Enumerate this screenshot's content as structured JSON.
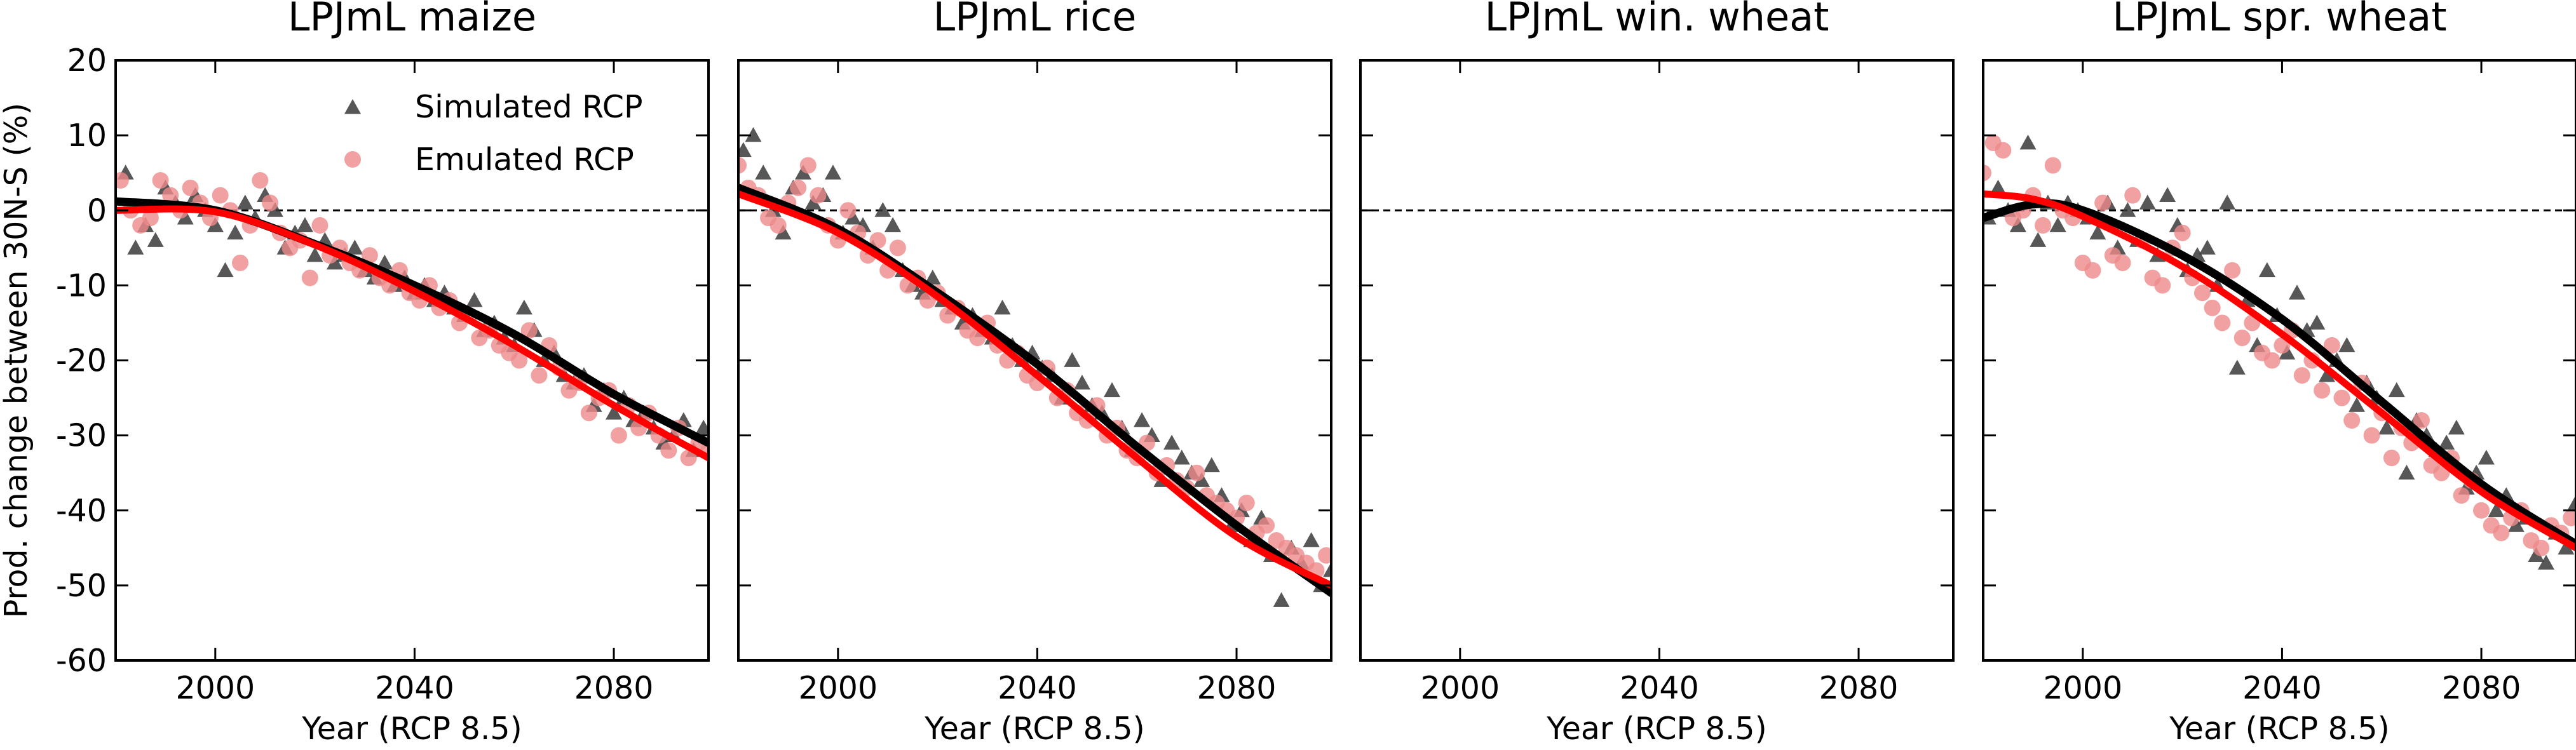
{
  "figure": {
    "ylabel": "Prod. change between 30N-S (%)",
    "y_ticks": [
      20,
      10,
      0,
      -10,
      -20,
      -30,
      -40,
      -50,
      -60
    ],
    "x_ticks": [
      2000,
      2040,
      2080
    ],
    "legend": {
      "simulated": "Simulated RCP",
      "emulated": "Emulated RCP",
      "simulated_color": "#3a3a3a",
      "emulated_color": "#ee8a8a"
    },
    "colors": {
      "simulated_fit": "#000000",
      "emulated_fit": "#ff0000",
      "zero_line": "#000000"
    }
  },
  "chart_data": [
    {
      "type": "scatter",
      "title": "LPJmL maize",
      "xlabel": "Year (RCP 8.5)",
      "ylabel": "Prod. change between 30N-S (%)",
      "xlim": [
        1980,
        2099
      ],
      "ylim": [
        -60,
        20
      ],
      "zero_line": true,
      "legend": "top-right",
      "series": [
        {
          "name": "Simulated RCP",
          "marker": "triangle",
          "x": [
            1982,
            1984,
            1986,
            1988,
            1990,
            1992,
            1994,
            1996,
            1998,
            2000,
            2002,
            2004,
            2006,
            2008,
            2010,
            2012,
            2014,
            2016,
            2018,
            2020,
            2022,
            2024,
            2026,
            2028,
            2030,
            2032,
            2034,
            2036,
            2038,
            2040,
            2042,
            2044,
            2046,
            2048,
            2050,
            2052,
            2054,
            2056,
            2058,
            2060,
            2062,
            2064,
            2066,
            2068,
            2070,
            2072,
            2074,
            2076,
            2078,
            2080,
            2082,
            2084,
            2086,
            2088,
            2090,
            2092,
            2094,
            2096,
            2098
          ],
          "y": [
            5,
            -5,
            -2,
            -4,
            3,
            1,
            -1,
            2,
            0,
            -2,
            -8,
            -3,
            1,
            -1,
            2,
            0,
            -5,
            -3,
            -2,
            -6,
            -4,
            -7,
            -6,
            -5,
            -8,
            -9,
            -7,
            -10,
            -9,
            -11,
            -10,
            -12,
            -11,
            -13,
            -14,
            -12,
            -16,
            -15,
            -17,
            -18,
            -13,
            -16,
            -20,
            -19,
            -22,
            -23,
            -22,
            -26,
            -24,
            -27,
            -25,
            -28,
            -27,
            -29,
            -31,
            -30,
            -28,
            -32,
            -29
          ]
        },
        {
          "name": "Emulated RCP",
          "marker": "circle",
          "x": [
            1981,
            1983,
            1985,
            1987,
            1989,
            1991,
            1993,
            1995,
            1997,
            1999,
            2001,
            2003,
            2005,
            2007,
            2009,
            2011,
            2013,
            2015,
            2017,
            2019,
            2021,
            2023,
            2025,
            2027,
            2029,
            2031,
            2033,
            2035,
            2037,
            2039,
            2041,
            2043,
            2045,
            2047,
            2049,
            2051,
            2053,
            2055,
            2057,
            2059,
            2061,
            2063,
            2065,
            2067,
            2069,
            2071,
            2073,
            2075,
            2077,
            2079,
            2081,
            2083,
            2085,
            2087,
            2089,
            2091,
            2093,
            2095,
            2097,
            2099
          ],
          "y": [
            4,
            0,
            -2,
            -1,
            4,
            2,
            0,
            3,
            1,
            -1,
            2,
            0,
            -7,
            -2,
            4,
            1,
            -3,
            -5,
            -4,
            -9,
            -2,
            -6,
            -5,
            -7,
            -8,
            -6,
            -9,
            -10,
            -8,
            -11,
            -12,
            -10,
            -13,
            -12,
            -15,
            -14,
            -17,
            -16,
            -18,
            -19,
            -20,
            -16,
            -22,
            -18,
            -21,
            -24,
            -23,
            -27,
            -25,
            -24,
            -30,
            -26,
            -29,
            -27,
            -30,
            -32,
            -29,
            -33,
            -31,
            -32
          ]
        }
      ],
      "fits": [
        {
          "name": "Simulated RCP",
          "x": [
            1980,
            2000,
            2020,
            2040,
            2060,
            2080,
            2099
          ],
          "y": [
            1.2,
            0.0,
            -4.5,
            -10.0,
            -16.5,
            -24.5,
            -31.0
          ]
        },
        {
          "name": "Emulated RCP",
          "x": [
            1980,
            2000,
            2020,
            2040,
            2060,
            2080,
            2099
          ],
          "y": [
            0.0,
            -0.2,
            -4.6,
            -10.8,
            -18.0,
            -26.0,
            -33.0
          ]
        }
      ]
    },
    {
      "type": "scatter",
      "title": "LPJmL rice",
      "xlabel": "Year (RCP 8.5)",
      "xlim": [
        1980,
        2099
      ],
      "ylim": [
        -60,
        20
      ],
      "zero_line": true,
      "series": [
        {
          "name": "Simulated RCP",
          "marker": "triangle",
          "x": [
            1981,
            1983,
            1985,
            1987,
            1989,
            1991,
            1993,
            1995,
            1997,
            1999,
            2001,
            2003,
            2005,
            2007,
            2009,
            2011,
            2013,
            2015,
            2017,
            2019,
            2021,
            2023,
            2025,
            2027,
            2029,
            2031,
            2033,
            2035,
            2037,
            2039,
            2041,
            2043,
            2045,
            2047,
            2049,
            2051,
            2053,
            2055,
            2057,
            2059,
            2061,
            2063,
            2065,
            2067,
            2069,
            2071,
            2073,
            2075,
            2077,
            2079,
            2081,
            2083,
            2085,
            2087,
            2089,
            2091,
            2093,
            2095,
            2097,
            2099
          ],
          "y": [
            8,
            10,
            5,
            0,
            -3,
            3,
            5,
            1,
            2,
            5,
            -3,
            -1,
            -2,
            -5,
            0,
            -2,
            -8,
            -10,
            -11,
            -9,
            -12,
            -13,
            -15,
            -14,
            -16,
            -17,
            -13,
            -18,
            -20,
            -19,
            -21,
            -22,
            -25,
            -20,
            -23,
            -26,
            -27,
            -24,
            -29,
            -32,
            -28,
            -30,
            -36,
            -31,
            -33,
            -35,
            -36,
            -34,
            -38,
            -42,
            -40,
            -44,
            -41,
            -46,
            -52,
            -45,
            -47,
            -44,
            -50,
            -48
          ]
        },
        {
          "name": "Emulated RCP",
          "marker": "circle",
          "x": [
            1980,
            1982,
            1984,
            1986,
            1988,
            1990,
            1992,
            1994,
            1996,
            1998,
            2000,
            2002,
            2004,
            2006,
            2008,
            2010,
            2012,
            2014,
            2016,
            2018,
            2020,
            2022,
            2024,
            2026,
            2028,
            2030,
            2032,
            2034,
            2036,
            2038,
            2040,
            2042,
            2044,
            2046,
            2048,
            2050,
            2052,
            2054,
            2056,
            2058,
            2060,
            2062,
            2064,
            2066,
            2068,
            2070,
            2072,
            2074,
            2076,
            2078,
            2080,
            2082,
            2084,
            2086,
            2088,
            2090,
            2092,
            2094,
            2096,
            2098
          ],
          "y": [
            6,
            3,
            2,
            -1,
            -2,
            1,
            3,
            6,
            2,
            -2,
            -4,
            0,
            -3,
            -6,
            -4,
            -8,
            -5,
            -10,
            -9,
            -12,
            -11,
            -14,
            -13,
            -16,
            -17,
            -15,
            -18,
            -20,
            -19,
            -22,
            -23,
            -21,
            -25,
            -24,
            -27,
            -28,
            -26,
            -30,
            -29,
            -32,
            -33,
            -31,
            -35,
            -34,
            -36,
            -37,
            -35,
            -38,
            -39,
            -40,
            -41,
            -39,
            -43,
            -42,
            -44,
            -45,
            -46,
            -47,
            -48,
            -46
          ]
        }
      ],
      "fits": [
        {
          "name": "Simulated RCP",
          "x": [
            1980,
            2000,
            2020,
            2040,
            2060,
            2080,
            2099
          ],
          "y": [
            3.0,
            -2.5,
            -11.0,
            -20.5,
            -31.5,
            -42.0,
            -51.0
          ]
        },
        {
          "name": "Emulated RCP",
          "x": [
            1980,
            2000,
            2020,
            2040,
            2060,
            2080,
            2099
          ],
          "y": [
            2.2,
            -3.0,
            -11.5,
            -22.0,
            -33.0,
            -43.5,
            -50.0
          ]
        }
      ]
    },
    {
      "type": "scatter",
      "title": "LPJmL win. wheat",
      "xlabel": "Year (RCP 8.5)",
      "xlim": [
        1980,
        2099
      ],
      "ylim": [
        -60,
        20
      ],
      "zero_line": true,
      "series": [],
      "fits": []
    },
    {
      "type": "scatter",
      "title": "LPJmL spr. wheat",
      "xlabel": "Year (RCP 8.5)",
      "xlim": [
        1980,
        2099
      ],
      "ylim": [
        -60,
        20
      ],
      "zero_line": true,
      "series": [
        {
          "name": "Simulated RCP",
          "marker": "triangle",
          "x": [
            1981,
            1983,
            1985,
            1987,
            1989,
            1991,
            1993,
            1995,
            1997,
            1999,
            2001,
            2003,
            2005,
            2007,
            2009,
            2011,
            2013,
            2015,
            2017,
            2019,
            2021,
            2023,
            2025,
            2027,
            2029,
            2031,
            2033,
            2035,
            2037,
            2039,
            2041,
            2043,
            2045,
            2047,
            2049,
            2051,
            2053,
            2055,
            2057,
            2059,
            2061,
            2063,
            2065,
            2067,
            2069,
            2071,
            2073,
            2075,
            2077,
            2079,
            2081,
            2083,
            2085,
            2087,
            2089,
            2091,
            2093,
            2095,
            2097,
            2099
          ],
          "y": [
            -1,
            3,
            0,
            -2,
            9,
            -4,
            1,
            -2,
            1,
            0,
            -1,
            -3,
            1,
            -5,
            0,
            -4,
            1,
            -6,
            2,
            -2,
            -8,
            -6,
            -5,
            -10,
            1,
            -21,
            -12,
            -18,
            -8,
            -14,
            -19,
            -11,
            -16,
            -15,
            -22,
            -20,
            -18,
            -26,
            -23,
            -25,
            -29,
            -24,
            -35,
            -28,
            -30,
            -32,
            -31,
            -29,
            -37,
            -35,
            -33,
            -40,
            -38,
            -42,
            -41,
            -46,
            -47,
            -43,
            -45,
            -39
          ]
        },
        {
          "name": "Emulated RCP",
          "marker": "circle",
          "x": [
            1980,
            1982,
            1984,
            1986,
            1988,
            1990,
            1992,
            1994,
            1996,
            1998,
            2000,
            2002,
            2004,
            2006,
            2008,
            2010,
            2012,
            2014,
            2016,
            2018,
            2020,
            2022,
            2024,
            2026,
            2028,
            2030,
            2032,
            2034,
            2036,
            2038,
            2040,
            2042,
            2044,
            2046,
            2048,
            2050,
            2052,
            2054,
            2056,
            2058,
            2060,
            2062,
            2064,
            2066,
            2068,
            2070,
            2072,
            2074,
            2076,
            2078,
            2080,
            2082,
            2084,
            2086,
            2088,
            2090,
            2092,
            2094,
            2096,
            2098
          ],
          "y": [
            5,
            9,
            8,
            -1,
            0,
            2,
            -2,
            6,
            0,
            -1,
            -7,
            -8,
            1,
            -6,
            -7,
            2,
            -4,
            -9,
            -10,
            -5,
            -3,
            -9,
            -11,
            -13,
            -15,
            -8,
            -17,
            -15,
            -19,
            -20,
            -18,
            -16,
            -22,
            -20,
            -24,
            -18,
            -25,
            -28,
            -23,
            -30,
            -27,
            -33,
            -29,
            -31,
            -28,
            -34,
            -35,
            -33,
            -38,
            -36,
            -40,
            -42,
            -43,
            -41,
            -40,
            -44,
            -45,
            -42,
            -43,
            -41
          ]
        }
      ],
      "fits": [
        {
          "name": "Simulated RCP",
          "x": [
            1980,
            1990,
            2000,
            2020,
            2040,
            2060,
            2080,
            2099
          ],
          "y": [
            -1.0,
            0.8,
            0.0,
            -6.0,
            -14.5,
            -25.5,
            -36.5,
            -44.5
          ]
        },
        {
          "name": "Emulated RCP",
          "x": [
            1980,
            1990,
            2000,
            2020,
            2040,
            2060,
            2080,
            2099
          ],
          "y": [
            2.2,
            1.5,
            -0.8,
            -7.5,
            -16.5,
            -27.0,
            -37.5,
            -45.0
          ]
        }
      ]
    }
  ]
}
